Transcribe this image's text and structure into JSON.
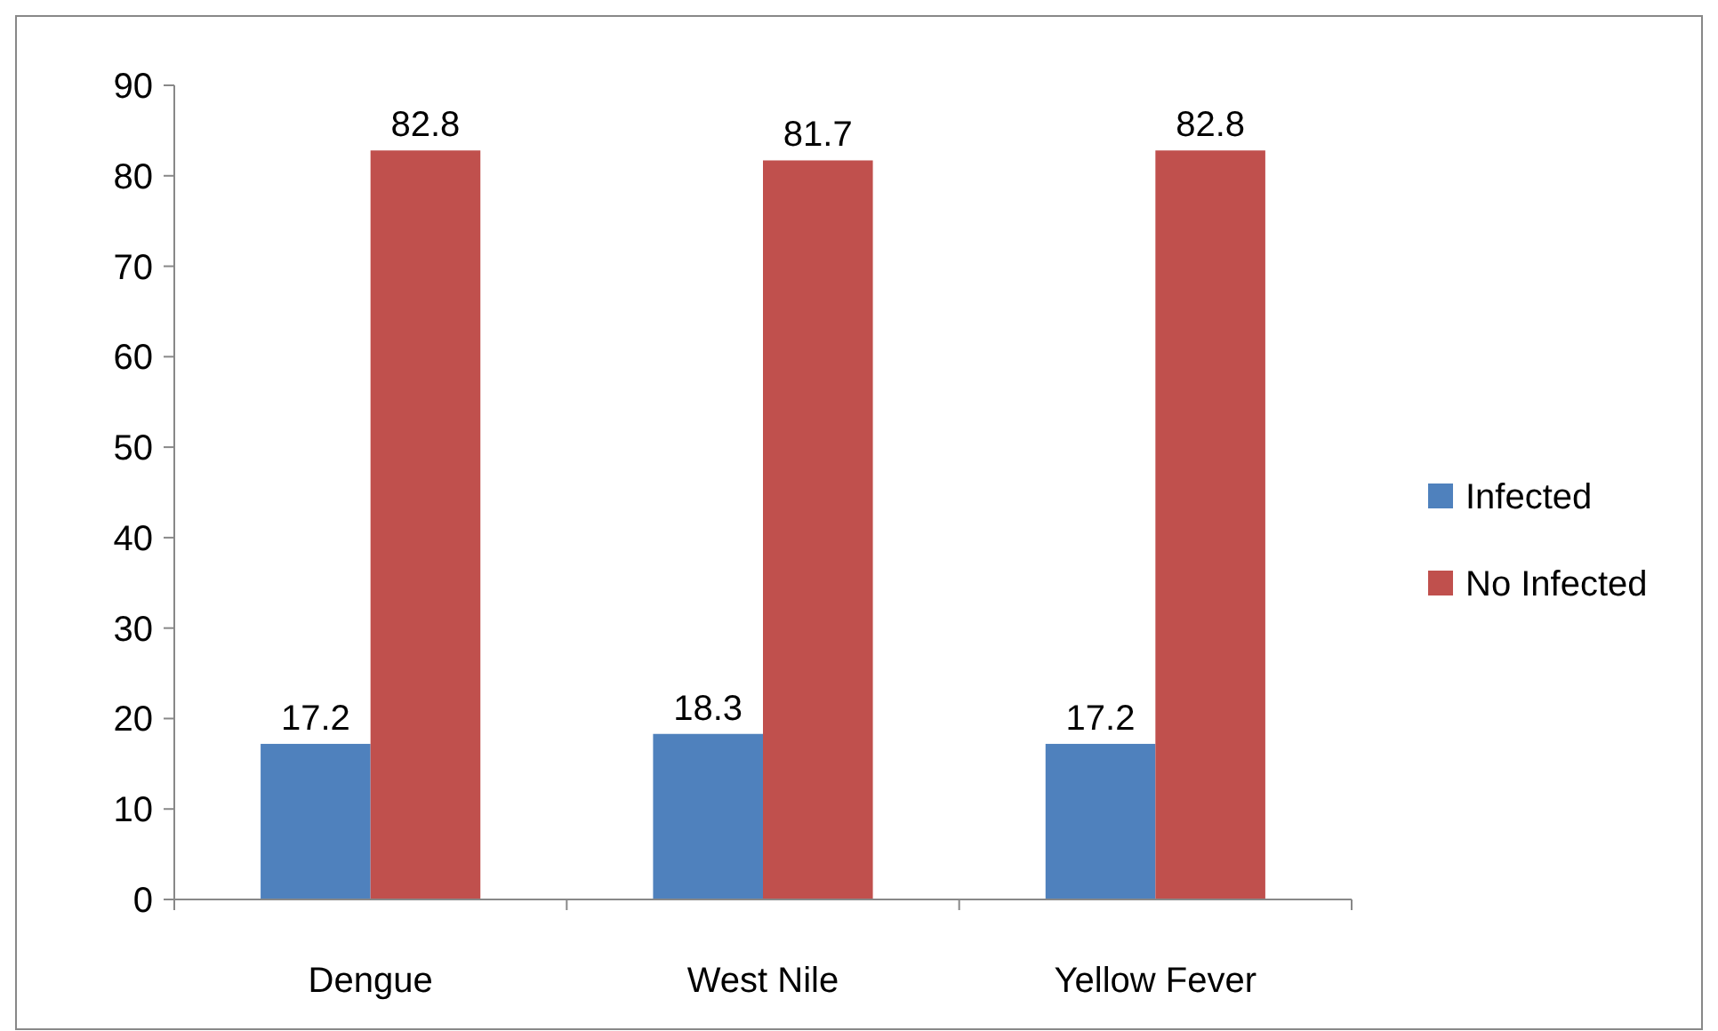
{
  "chart_data": {
    "type": "bar",
    "categories": [
      "Dengue",
      "West Nile",
      "Yellow Fever"
    ],
    "series": [
      {
        "name": "Infected",
        "color": "#4f81bd",
        "values": [
          17.2,
          18.3,
          17.2
        ]
      },
      {
        "name": "No Infected",
        "color": "#c0504d",
        "values": [
          82.8,
          81.7,
          82.8
        ]
      }
    ],
    "ylim": [
      0,
      90
    ],
    "yticks": [
      0,
      10,
      20,
      30,
      40,
      50,
      60,
      70,
      80,
      90
    ],
    "grid": false,
    "legend": "right",
    "data_labels": true
  }
}
